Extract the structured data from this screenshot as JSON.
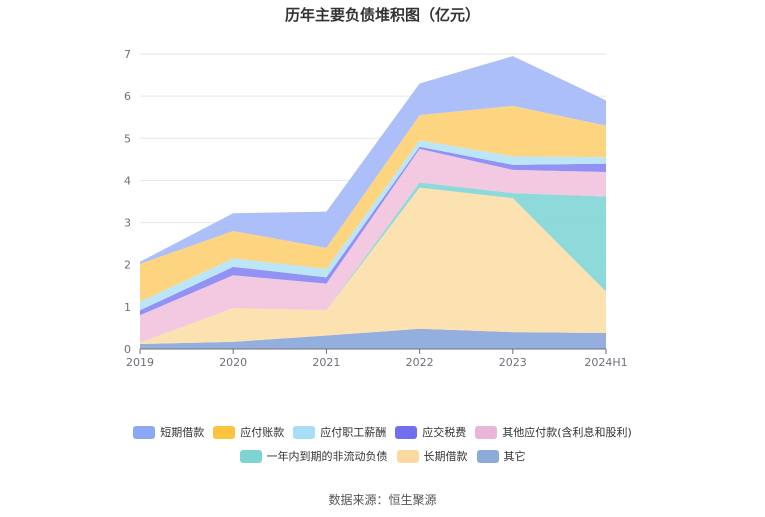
{
  "page": {
    "source": "数据来源：恒生聚源"
  },
  "chart_data": {
    "type": "area",
    "stacked": true,
    "title": "历年主要负债堆积图（亿元）",
    "xlabel": "",
    "ylabel": "",
    "categories": [
      "2019",
      "2020",
      "2021",
      "2022",
      "2023",
      "2024H1"
    ],
    "ylim": [
      0,
      7
    ],
    "yticks": [
      "0",
      "1",
      "2",
      "3",
      "4",
      "5",
      "6",
      "7"
    ],
    "grid": true,
    "legend_position": "bottom",
    "series": [
      {
        "name": "其它",
        "color": "#8eaadb",
        "values": [
          0.12,
          0.17,
          0.32,
          0.48,
          0.4,
          0.38
        ]
      },
      {
        "name": "长期借款",
        "color": "#fde0ad",
        "values": [
          0.03,
          0.8,
          0.6,
          3.35,
          3.18,
          0.98
        ]
      },
      {
        "name": "一年内到期的非流动负债",
        "color": "#88d8d8",
        "values": [
          0.0,
          0.0,
          0.0,
          0.12,
          0.12,
          2.26
        ]
      },
      {
        "name": "其他应付款(含利息和股利)",
        "color": "#f1c6df",
        "values": [
          0.65,
          0.78,
          0.63,
          0.8,
          0.55,
          0.58
        ]
      },
      {
        "name": "应交税费",
        "color": "#8c8cf4",
        "values": [
          0.12,
          0.2,
          0.15,
          0.05,
          0.12,
          0.2
        ]
      },
      {
        "name": "应付职工薪酬",
        "color": "#b7e5f8",
        "values": [
          0.2,
          0.2,
          0.2,
          0.15,
          0.2,
          0.15
        ]
      },
      {
        "name": "应付账款",
        "color": "#fdd37a",
        "values": [
          0.9,
          0.65,
          0.5,
          0.6,
          1.2,
          0.75
        ]
      },
      {
        "name": "短期借款",
        "color": "#a8bcf8",
        "values": [
          0.05,
          0.42,
          0.86,
          0.75,
          1.18,
          0.6
        ]
      }
    ]
  },
  "legend": {
    "row1": [
      {
        "label": "短期借款",
        "color": "#8aa8f5"
      },
      {
        "label": "应付账款",
        "color": "#fdc23f"
      },
      {
        "label": "应付职工薪酬",
        "color": "#a8ddf7"
      },
      {
        "label": "应交税费",
        "color": "#6f6ff0"
      },
      {
        "label": "其他应付款(含利息和股利)",
        "color": "#eab5d6"
      }
    ],
    "row2": [
      {
        "label": "一年内到期的非流动负债",
        "color": "#7fd3d3"
      },
      {
        "label": "长期借款",
        "color": "#fdd9a2"
      },
      {
        "label": "其它",
        "color": "#8eaadb"
      }
    ]
  }
}
